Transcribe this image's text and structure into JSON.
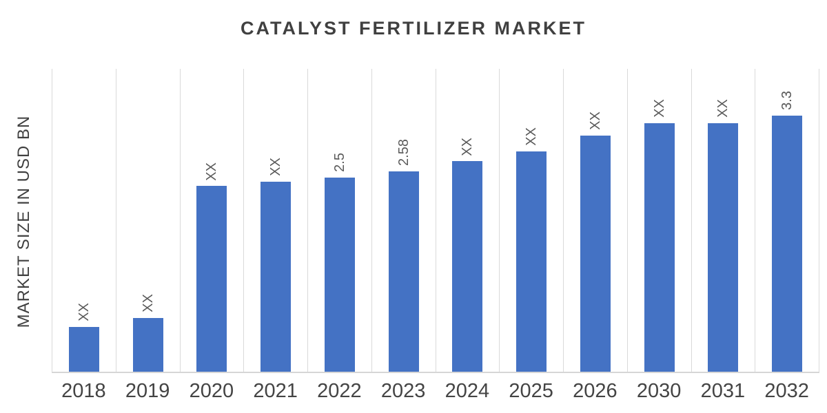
{
  "title": "CATALYST FERTILIZER MARKET",
  "chart_data": {
    "type": "bar",
    "title": "CATALYST FERTILIZER MARKET",
    "xlabel": "",
    "ylabel": "MARKET SIZE IN USD BN",
    "categories": [
      "2018",
      "2019",
      "2020",
      "2021",
      "2022",
      "2023",
      "2024",
      "2025",
      "2026",
      "2030",
      "2031",
      "2032"
    ],
    "values": [
      0.58,
      0.69,
      2.39,
      2.45,
      2.5,
      2.58,
      2.71,
      2.84,
      3.04,
      3.2,
      3.2,
      3.3
    ],
    "bar_labels": [
      "XX",
      "XX",
      "XX",
      "XX",
      "2.5",
      "2.58",
      "XX",
      "XX",
      "XX",
      "XX",
      "XX",
      "3.3"
    ],
    "ylim": [
      0,
      3.9
    ],
    "legend": "none",
    "grid": "vertical",
    "bar_color": "#4472c4",
    "label_color": "#595959",
    "title_color": "#404040"
  }
}
